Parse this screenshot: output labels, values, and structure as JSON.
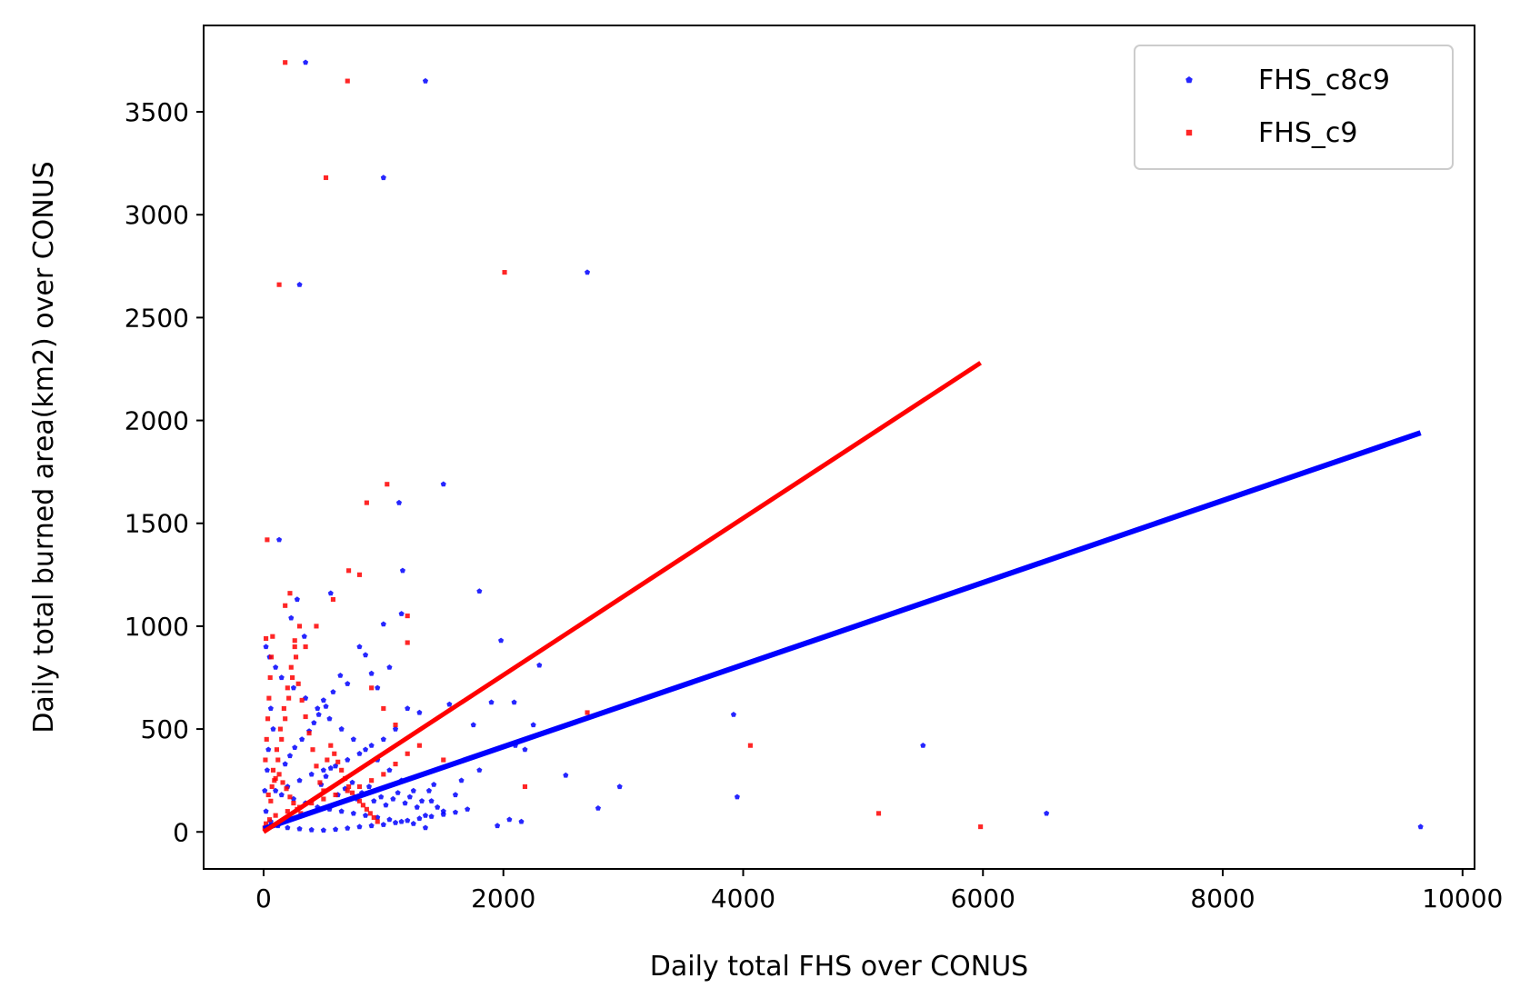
{
  "chart_data": {
    "type": "scatter",
    "xlabel": "Daily total FHS over CONUS",
    "ylabel": "Daily total burned area(km2) over CONUS",
    "xlim": [
      -500,
      10100
    ],
    "ylim": [
      -180,
      3920
    ],
    "xticks": [
      "0",
      "2000",
      "4000",
      "6000",
      "8000",
      "10000"
    ],
    "yticks": [
      "0",
      "500",
      "1000",
      "1500",
      "2000",
      "2500",
      "3000",
      "3500"
    ],
    "legend": {
      "position": "upper-right",
      "entries": [
        "FHS_c8c9",
        "FHS_c9"
      ]
    },
    "grid": false,
    "series": [
      {
        "name": "FHS_c8c9",
        "color": "#0000ff",
        "marker": "pentagon",
        "points": [
          [
            350,
            3740
          ],
          [
            1350,
            3650
          ],
          [
            1000,
            3180
          ],
          [
            300,
            2660
          ],
          [
            2700,
            2720
          ],
          [
            1500,
            1690
          ],
          [
            130,
            1420
          ],
          [
            1130,
            1600
          ],
          [
            1160,
            1270
          ],
          [
            1800,
            1170
          ],
          [
            1150,
            1060
          ],
          [
            1980,
            930
          ],
          [
            2300,
            810
          ],
          [
            3920,
            570
          ],
          [
            5500,
            420
          ],
          [
            3950,
            170
          ],
          [
            6530,
            90
          ],
          [
            9650,
            25
          ],
          [
            2520,
            275
          ],
          [
            2970,
            220
          ],
          [
            2790,
            115
          ],
          [
            1950,
            30
          ],
          [
            2150,
            50
          ],
          [
            2050,
            60
          ],
          [
            1350,
            20
          ],
          [
            2090,
            630
          ],
          [
            1900,
            630
          ],
          [
            1550,
            620
          ],
          [
            1750,
            520
          ],
          [
            2250,
            520
          ],
          [
            2100,
            420
          ],
          [
            2180,
            400
          ],
          [
            1800,
            300
          ],
          [
            1650,
            250
          ],
          [
            1600,
            180
          ],
          [
            1500,
            100
          ],
          [
            1400,
            150
          ],
          [
            1000,
            1010
          ],
          [
            560,
            1160
          ],
          [
            280,
            1130
          ],
          [
            230,
            1040
          ],
          [
            340,
            950
          ],
          [
            800,
            900
          ],
          [
            850,
            860
          ],
          [
            1050,
            800
          ],
          [
            900,
            770
          ],
          [
            950,
            700
          ],
          [
            700,
            720
          ],
          [
            500,
            640
          ],
          [
            1200,
            600
          ],
          [
            1300,
            580
          ],
          [
            1100,
            500
          ],
          [
            1000,
            450
          ],
          [
            900,
            420
          ],
          [
            800,
            380
          ],
          [
            700,
            350
          ],
          [
            600,
            320
          ],
          [
            500,
            300
          ],
          [
            400,
            280
          ],
          [
            300,
            250
          ],
          [
            200,
            220
          ],
          [
            100,
            200
          ],
          [
            150,
            180
          ],
          [
            250,
            160
          ],
          [
            350,
            140
          ],
          [
            450,
            120
          ],
          [
            550,
            110
          ],
          [
            650,
            100
          ],
          [
            750,
            90
          ],
          [
            850,
            80
          ],
          [
            950,
            70
          ],
          [
            1050,
            60
          ],
          [
            1150,
            50
          ],
          [
            1250,
            40
          ],
          [
            1350,
            80
          ],
          [
            1450,
            120
          ],
          [
            1250,
            200
          ],
          [
            1150,
            250
          ],
          [
            1050,
            300
          ],
          [
            950,
            350
          ],
          [
            850,
            400
          ],
          [
            750,
            450
          ],
          [
            650,
            500
          ],
          [
            550,
            550
          ],
          [
            450,
            600
          ],
          [
            350,
            650
          ],
          [
            250,
            700
          ],
          [
            150,
            750
          ],
          [
            100,
            800
          ],
          [
            50,
            850
          ],
          [
            20,
            900
          ],
          [
            60,
            600
          ],
          [
            80,
            500
          ],
          [
            40,
            400
          ],
          [
            30,
            300
          ],
          [
            10,
            200
          ],
          [
            20,
            100
          ],
          [
            60,
            50
          ],
          [
            120,
            30
          ],
          [
            200,
            20
          ],
          [
            300,
            15
          ],
          [
            400,
            10
          ],
          [
            500,
            8
          ],
          [
            600,
            12
          ],
          [
            700,
            18
          ],
          [
            800,
            25
          ],
          [
            900,
            30
          ],
          [
            1000,
            35
          ],
          [
            1100,
            45
          ],
          [
            1200,
            55
          ],
          [
            1300,
            65
          ],
          [
            1400,
            75
          ],
          [
            1500,
            85
          ],
          [
            1600,
            95
          ],
          [
            1700,
            110
          ],
          [
            480,
            230
          ],
          [
            520,
            270
          ],
          [
            560,
            310
          ],
          [
            620,
            180
          ],
          [
            680,
            210
          ],
          [
            740,
            240
          ],
          [
            780,
            160
          ],
          [
            820,
            190
          ],
          [
            880,
            220
          ],
          [
            920,
            150
          ],
          [
            980,
            170
          ],
          [
            1020,
            130
          ],
          [
            1080,
            160
          ],
          [
            1120,
            190
          ],
          [
            1180,
            140
          ],
          [
            1220,
            170
          ],
          [
            1280,
            120
          ],
          [
            1320,
            150
          ],
          [
            1380,
            200
          ],
          [
            1420,
            230
          ],
          [
            180,
            330
          ],
          [
            220,
            370
          ],
          [
            260,
            410
          ],
          [
            320,
            450
          ],
          [
            380,
            490
          ],
          [
            420,
            530
          ],
          [
            460,
            570
          ],
          [
            520,
            610
          ],
          [
            580,
            680
          ],
          [
            640,
            760
          ]
        ],
        "fit": {
          "x": [
            0,
            9650
          ],
          "y": [
            15,
            1940
          ]
        }
      },
      {
        "name": "FHS_c9",
        "color": "#ff0000",
        "marker": "square",
        "points": [
          [
            180,
            3740
          ],
          [
            700,
            3650
          ],
          [
            520,
            3180
          ],
          [
            2010,
            2720
          ],
          [
            130,
            2660
          ],
          [
            1030,
            1690
          ],
          [
            860,
            1600
          ],
          [
            30,
            1420
          ],
          [
            710,
            1270
          ],
          [
            800,
            1250
          ],
          [
            220,
            1160
          ],
          [
            580,
            1130
          ],
          [
            180,
            1100
          ],
          [
            1200,
            1050
          ],
          [
            300,
            1000
          ],
          [
            440,
            1000
          ],
          [
            20,
            940
          ],
          [
            260,
            930
          ],
          [
            1200,
            920
          ],
          [
            350,
            900
          ],
          [
            2700,
            580
          ],
          [
            4060,
            420
          ],
          [
            2180,
            220
          ],
          [
            5130,
            90
          ],
          [
            5980,
            25
          ],
          [
            1500,
            350
          ],
          [
            1300,
            420
          ],
          [
            1200,
            380
          ],
          [
            1100,
            330
          ],
          [
            1000,
            280
          ],
          [
            900,
            250
          ],
          [
            800,
            220
          ],
          [
            700,
            200
          ],
          [
            600,
            180
          ],
          [
            500,
            160
          ],
          [
            400,
            140
          ],
          [
            300,
            120
          ],
          [
            200,
            100
          ],
          [
            100,
            80
          ],
          [
            50,
            60
          ],
          [
            20,
            40
          ],
          [
            10,
            20
          ],
          [
            60,
            150
          ],
          [
            90,
            250
          ],
          [
            120,
            350
          ],
          [
            150,
            450
          ],
          [
            180,
            550
          ],
          [
            210,
            650
          ],
          [
            240,
            750
          ],
          [
            270,
            850
          ],
          [
            80,
            300
          ],
          [
            110,
            400
          ],
          [
            140,
            500
          ],
          [
            170,
            600
          ],
          [
            200,
            700
          ],
          [
            230,
            800
          ],
          [
            260,
            900
          ],
          [
            290,
            720
          ],
          [
            320,
            640
          ],
          [
            350,
            560
          ],
          [
            380,
            480
          ],
          [
            410,
            400
          ],
          [
            440,
            320
          ],
          [
            470,
            240
          ],
          [
            500,
            200
          ],
          [
            530,
            350
          ],
          [
            560,
            420
          ],
          [
            590,
            380
          ],
          [
            620,
            340
          ],
          [
            650,
            300
          ],
          [
            680,
            260
          ],
          [
            710,
            220
          ],
          [
            740,
            190
          ],
          [
            770,
            170
          ],
          [
            800,
            150
          ],
          [
            830,
            130
          ],
          [
            860,
            110
          ],
          [
            890,
            90
          ],
          [
            920,
            70
          ],
          [
            950,
            50
          ],
          [
            40,
            180
          ],
          [
            70,
            220
          ],
          [
            100,
            260
          ],
          [
            130,
            280
          ],
          [
            160,
            240
          ],
          [
            190,
            210
          ],
          [
            220,
            170
          ],
          [
            250,
            140
          ],
          [
            280,
            110
          ],
          [
            310,
            90
          ],
          [
            15,
            350
          ],
          [
            25,
            450
          ],
          [
            35,
            550
          ],
          [
            45,
            650
          ],
          [
            55,
            750
          ],
          [
            65,
            850
          ],
          [
            75,
            950
          ],
          [
            900,
            700
          ],
          [
            1000,
            600
          ],
          [
            1100,
            520
          ]
        ],
        "fit": {
          "x": [
            0,
            5980
          ],
          "y": [
            0,
            2280
          ]
        }
      }
    ]
  }
}
